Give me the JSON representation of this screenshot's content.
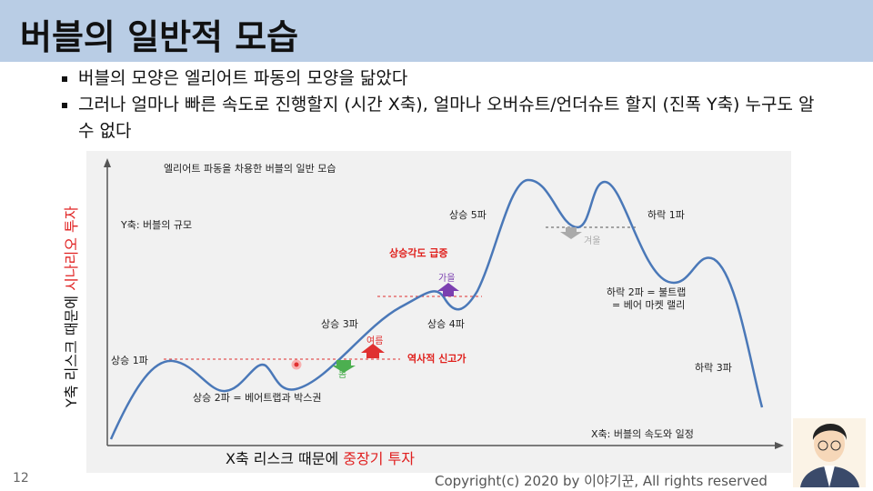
{
  "header": {
    "title": "버블의 일반적 모습"
  },
  "bullets": [
    "버블의 모양은 엘리어트 파동의 모양을 닮았다",
    "그러나 얼마나 빠른 속도로 진행할지 (시간 X축), 얼마나 오버슈트/언더슈트 할지 (진폭 Y축) 누구도 알 수 없다"
  ],
  "diagram": {
    "title": "엘리어트 파동을 차용한 버블의 일반 모습",
    "y_axis_note": "Y축: 버블의 규모",
    "x_axis_note": "X축: 버블의 속도와 일정",
    "labels": {
      "up1": "상승 1파",
      "up2": "상승 2파 = 베어트랩과 박스권",
      "up3": "상승 3파",
      "up4": "상승 4파",
      "up5": "상승 5파",
      "angle": "상승각도 급증",
      "high": "역사적 신고가",
      "down1": "하락 1파",
      "down2a": "하락 2파 = 불트랩",
      "down2b": "= 베어 마켓 랠리",
      "down3": "하락 3파",
      "spring": "봄",
      "summer": "여름",
      "autumn": "가을",
      "winter": "겨울"
    },
    "y_label": {
      "plain": "Y축 리스크 때문에 ",
      "red": "시나리오 투자"
    },
    "x_label": {
      "plain": "X축 리스크 때문에 ",
      "red": "중장기 투자"
    }
  },
  "footer": {
    "page": "12",
    "copyright": "Copyright(c) 2020 by 이야기꾼, All rights reserved"
  }
}
